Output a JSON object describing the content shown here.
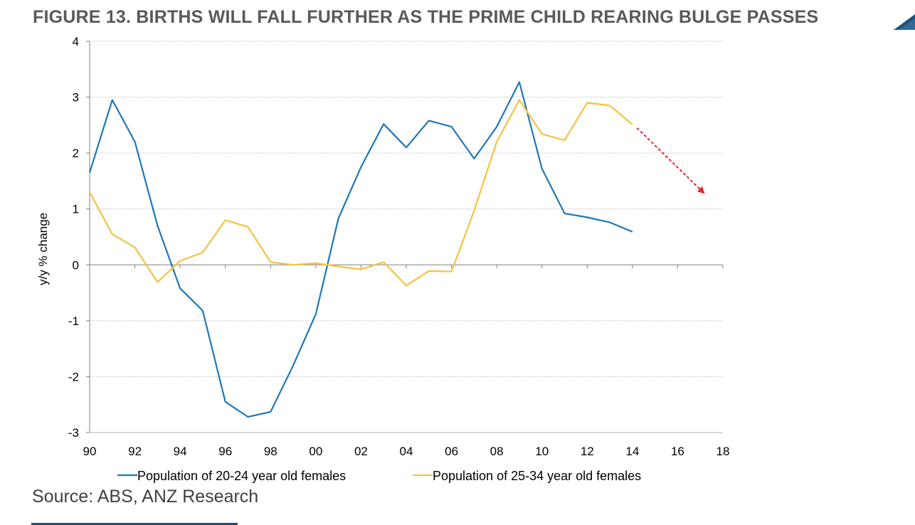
{
  "title": "FIGURE 13. BIRTHS WILL FALL FURTHER AS THE PRIME CHILD REARING BULGE PASSES",
  "source": "Source: ABS, ANZ Research",
  "colors": {
    "series1": "#1f77b4",
    "series2": "#f5c242",
    "arrow": "#e8202a",
    "grid": "#bfbfbf",
    "title": "#595959"
  },
  "chart_data": {
    "type": "line",
    "title": "FIGURE 13. BIRTHS WILL FALL FURTHER AS THE PRIME CHILD REARING BULGE PASSES",
    "ylabel": "y/y % change",
    "xlabel": "",
    "ylim": [
      -3,
      4
    ],
    "xlim": [
      1990,
      2018
    ],
    "x_tick_labels": [
      "90",
      "92",
      "94",
      "96",
      "98",
      "00",
      "02",
      "04",
      "06",
      "08",
      "10",
      "12",
      "14",
      "16",
      "18"
    ],
    "y_tick_labels": [
      "-3",
      "-2",
      "-1",
      "0",
      "1",
      "2",
      "3",
      "4"
    ],
    "grid": "horizontal dotted",
    "legend": "bottom",
    "x": [
      1990,
      1991,
      1992,
      1993,
      1994,
      1995,
      1996,
      1997,
      1998,
      1999,
      2000,
      2001,
      2002,
      2003,
      2004,
      2005,
      2006,
      2007,
      2008,
      2009,
      2010,
      2011,
      2012,
      2013,
      2014
    ],
    "series": [
      {
        "name": "Population of 20-24 year old females",
        "color": "#1f77b4",
        "values": [
          1.65,
          2.95,
          2.2,
          0.7,
          -0.42,
          -0.82,
          -2.45,
          -2.72,
          -2.63,
          -1.8,
          -0.88,
          0.83,
          1.75,
          2.52,
          2.1,
          2.58,
          2.47,
          1.9,
          2.47,
          3.27,
          1.72,
          0.92,
          0.85,
          0.76,
          0.59
        ]
      },
      {
        "name": "Population of 25-34 year old females",
        "color": "#f5c242",
        "values": [
          1.3,
          0.55,
          0.31,
          -0.31,
          0.07,
          0.22,
          0.8,
          0.68,
          0.05,
          0.0,
          0.03,
          -0.03,
          -0.08,
          0.05,
          -0.37,
          -0.11,
          -0.12,
          0.97,
          2.2,
          2.95,
          2.34,
          2.23,
          2.9,
          2.85,
          2.51
        ]
      }
    ],
    "annotations": [
      {
        "type": "dashed-arrow",
        "color": "#e8202a",
        "from": [
          2014.2,
          2.45
        ],
        "to": [
          2017.2,
          1.27
        ]
      }
    ]
  }
}
